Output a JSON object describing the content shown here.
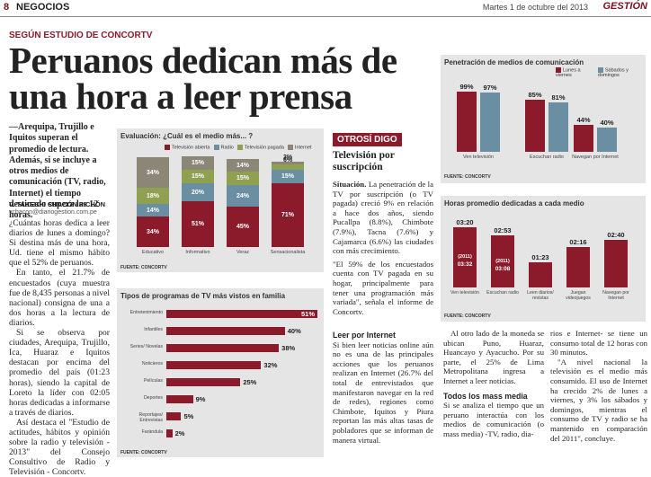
{
  "header": {
    "page_number": "8",
    "section": "NEGOCIOS",
    "date": "Martes 1 de octubre del 2013",
    "brand": "GESTIÓN"
  },
  "article": {
    "kicker": "SEGÚN ESTUDIO DE CONCORTV",
    "headline": "Peruanos dedican más de una hora a leer prensa",
    "lead": "—Arequipa, Trujillo e Iquitos superan el promedio de lectura. Además, si se incluye a otros medios de comunicación (TV, radio, Internet) el tiempo destinado supera las 12 horas.",
    "byline": "V. TAKESHI CHACÓN PICHÓN",
    "email": "vchacon@diariogestion.com.pe",
    "body_col1": [
      "¿Cuántas horas dedica a leer diarios de lunes a domingo? Si destina más de una hora, Ud. tiene el mismo hábito que el 52% de peruanos.",
      "En tanto, el 21.7% de encuestados (cuya muestra fue de 8,435 personas a nivel nacional) consigna de una a dos horas a la lectura de diarios.",
      "Si se observa por ciudades, Arequipa, Trujillo, Ica, Huaraz e Iquitos destacan por encima del promedio del país (01:23 horas), siendo la capital de Loreto la líder con 02:05 horas dedicadas a informarse a través de diarios.",
      "Así destaca el \"Estudio de actitudes, hábitos y opinión sobre la radio y televisión - 2013\" del Consejo Consultivo de Radio y Televisión - Concortv."
    ],
    "col3_title": "Leer por Internet",
    "col3_text": "Si bien leer noticias online aún no es una de las principales acciones que los peruanos realizan en Internet (26.7% del total de entrevistados que manifestaron navegar en la red de redes), regiones como Chimbote, Iquitos y Piura reportan las más altas tasas de pobladores que se informan de manera virtual.",
    "col4_text": "Al otro lado de la moneda se ubican Puno, Huaraz, Huancayo y Ayacucho. Por su parte, el 25% de Lima Metropolitana ingresa a Internet a leer noticias.",
    "col4_title": "Todos los mass media",
    "col4_text2": "Si se analiza el tiempo que un peruano interactúa con los medios de comunicación (o mass media) -TV, radio, dia-",
    "col5_text": "rios e Internet- se tiene un consumo total de 12 horas con 30 minutos.",
    "col5_text2": "\"A nivel nacional la televisión es el medio más consumido. El uso de Internet ha crecido 2% de lunes a viernes, y 3% los sábados y domingos, mientras el consumo de TV y radio se ha mantenido en comparación del 2011\", concluye."
  },
  "sidebar": {
    "tag": "OTROSÍ DIGO",
    "title": "Televisión por suscripción",
    "para1_bold": "Situación.",
    "para1": " La penetración de la TV por suscripción (o TV pagada) creció 9% en relación a hace dos años, siendo Pucallpa (8.8%), Chimbote (7.9%), Tacna (7.6%) y Cajamarca (6.6%) las ciudades con más crecimiento.",
    "para2": "\"El 59% de los encuestados cuenta con TV pagada en su hogar, principalmente para tener una programación más variada\", señala el informe de Concortv."
  },
  "chart_eval": {
    "title": "Evaluación: ¿Cuál es el medio más... ?",
    "legend": [
      "Televisión abierta",
      "Radio",
      "Televisión pagada",
      "Internet"
    ],
    "colors": [
      "#8b1a2b",
      "#6a8fa3",
      "#8fa050",
      "#8c8677"
    ],
    "source": "FUENTE: CONCORTV",
    "chart_data": {
      "type": "bar",
      "stacked": true,
      "categories": [
        "Educativo",
        "Informativo",
        "Veraz",
        "Sensacionalista"
      ],
      "series": [
        {
          "name": "Televisión abierta",
          "values": [
            34,
            51,
            45,
            71
          ],
          "labels": [
            "34%",
            "51%",
            "45%",
            "71%"
          ]
        },
        {
          "name": "Radio",
          "values": [
            14,
            20,
            24,
            15
          ],
          "labels": [
            "14%",
            "20%",
            "24%",
            "15%"
          ]
        },
        {
          "name": "Televisión pagada",
          "values": [
            18,
            15,
            15,
            6
          ],
          "labels": [
            "18%",
            "15%",
            "15%",
            "6%"
          ]
        },
        {
          "name": "Internet",
          "values": [
            34,
            15,
            14,
            3
          ],
          "labels": [
            "34%",
            "15%",
            "14%",
            "3%"
          ]
        }
      ]
    }
  },
  "chart_prog": {
    "title": "Tipos de programas de TV más vistos en familia",
    "source": "FUENTE: CONCORTV",
    "chart_data": {
      "type": "bar",
      "orientation": "horizontal",
      "categories": [
        "Entretenimiento",
        "Infantiles",
        "Series/ Novelas",
        "Noticieros",
        "Películas",
        "Deportes",
        "Reportajes/ Entrevistas",
        "Farándula"
      ],
      "values": [
        51,
        40,
        38,
        32,
        25,
        9,
        5,
        2
      ],
      "labels": [
        "51%",
        "40%",
        "38%",
        "32%",
        "25%",
        "9%",
        "5%",
        "2%"
      ]
    }
  },
  "chart_pen": {
    "title": "Penetración de medios de comunicación",
    "legend": [
      "Lunes a viernes",
      "Sábados y domingos"
    ],
    "colors": [
      "#8b1a2b",
      "#6a8fa3"
    ],
    "source": "FUENTE: CONCORTV",
    "chart_data": {
      "type": "bar",
      "categories": [
        "Ven televisión",
        "Escuchan radio",
        "Navegan por Internet"
      ],
      "series": [
        {
          "name": "Lunes a viernes",
          "values": [
            99,
            85,
            44
          ],
          "labels": [
            "99%",
            "85%",
            "44%"
          ]
        },
        {
          "name": "Sábados y domingos",
          "values": [
            97,
            81,
            40
          ],
          "labels": [
            "97%",
            "81%",
            "40%"
          ]
        }
      ]
    }
  },
  "chart_horas": {
    "title": "Horas promedio dedicadas a cada medio",
    "source": "FUENTE: CONCORTV",
    "chart_data": {
      "type": "bar",
      "categories": [
        "Ven televisión",
        "Escuchan radio",
        "Leen diarios/ revistas",
        "Juegan videojuegos",
        "Navegan por Internet"
      ],
      "values": [
        3.33,
        2.88,
        1.38,
        2.27,
        2.67
      ],
      "labels": [
        "03:20",
        "02:53",
        "01:23",
        "02:16",
        "02:40"
      ],
      "comparison_2011": {
        "tag": "(2011)",
        "values": [
          "03:32",
          "03:08"
        ]
      }
    }
  }
}
